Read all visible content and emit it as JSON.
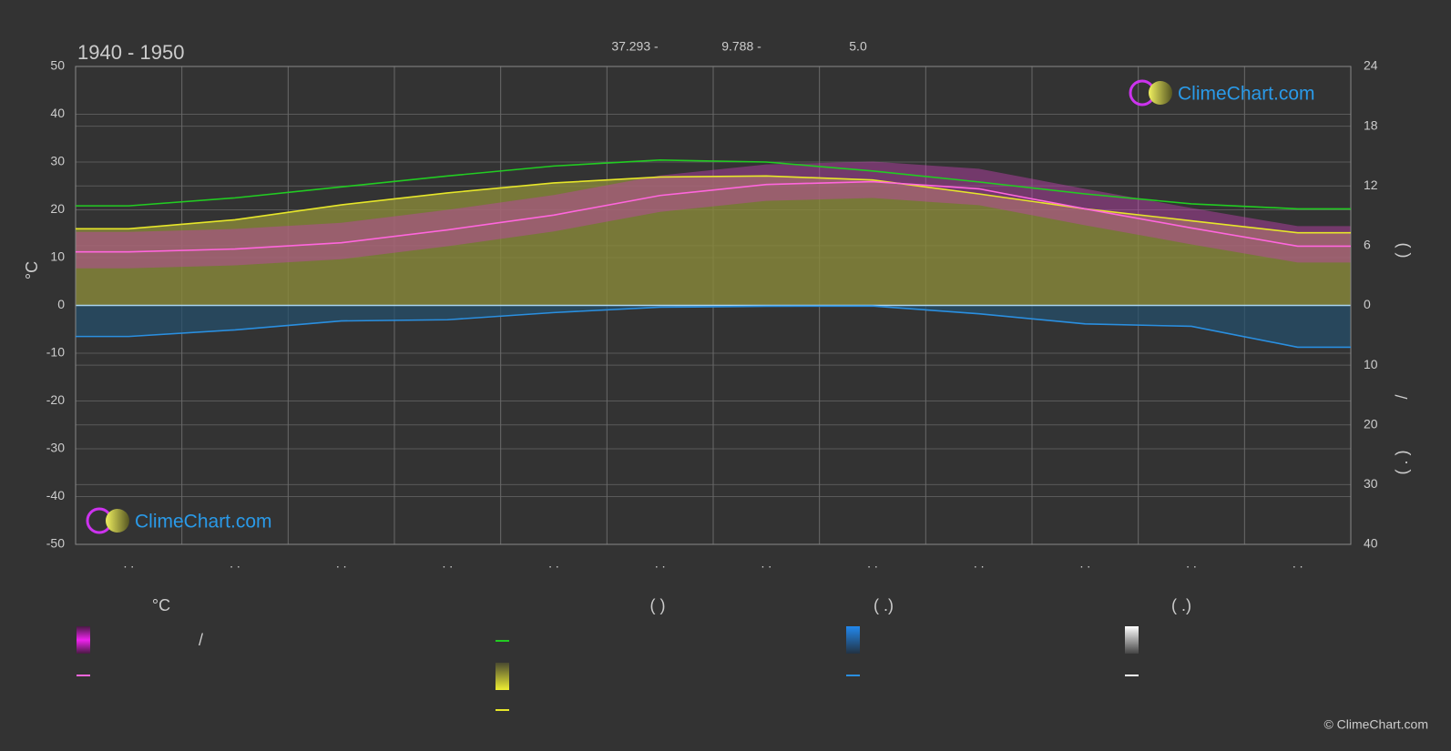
{
  "chart_data": {
    "type": "line",
    "title": "1940 - 1950",
    "stats": [
      "37.293 -",
      "9.788 -",
      "5.0"
    ],
    "ylabel": "°C",
    "y2labels": [
      "(          )",
      "/",
      "(  .  )"
    ],
    "categories": [
      ". .",
      ". .",
      ". .",
      ". .",
      ". .",
      ". .",
      ". .",
      ". .",
      ". .",
      ". .",
      ". .",
      ". ."
    ],
    "ylim": [
      -50,
      50
    ],
    "yticks": [
      -50,
      -40,
      -30,
      -20,
      -10,
      0,
      10,
      20,
      30,
      40,
      50
    ],
    "y2lim": [
      0,
      24
    ],
    "y2ticks": [
      0,
      6,
      12,
      18,
      24
    ],
    "y3lim": [
      0,
      40
    ],
    "y3ticks": [
      10,
      20,
      30,
      40
    ],
    "grid": true,
    "series": [
      {
        "color": "#22cc22",
        "axis": "y2",
        "values": [
          10.0,
          10.8,
          11.9,
          13.0,
          14.0,
          14.6,
          14.4,
          13.5,
          12.4,
          11.2,
          10.2,
          9.7
        ]
      },
      {
        "color": "#e6e62a",
        "axis": "y2",
        "values": [
          7.7,
          8.6,
          10.1,
          11.3,
          12.3,
          12.9,
          13.0,
          12.6,
          11.2,
          9.7,
          8.5,
          7.3
        ]
      },
      {
        "color": "#ff66dd",
        "axis": "y",
        "values": [
          11.2,
          11.8,
          13.1,
          15.8,
          18.9,
          23.0,
          25.3,
          25.9,
          24.4,
          20.2,
          16.2,
          12.4
        ]
      },
      {
        "color": "#2a8fe0",
        "axis": "y3",
        "values": [
          5.2,
          4.1,
          2.6,
          2.4,
          1.2,
          0.3,
          0.15,
          0.1,
          1.4,
          3.1,
          3.5,
          7.0
        ]
      }
    ],
    "legend": {
      "headers": [
        "°C",
        "(          )",
        "(    .)",
        "(    .)"
      ],
      "texts": [
        "/"
      ]
    },
    "logo": "ClimeChart.com",
    "copyright": "© ClimeChart.com"
  }
}
